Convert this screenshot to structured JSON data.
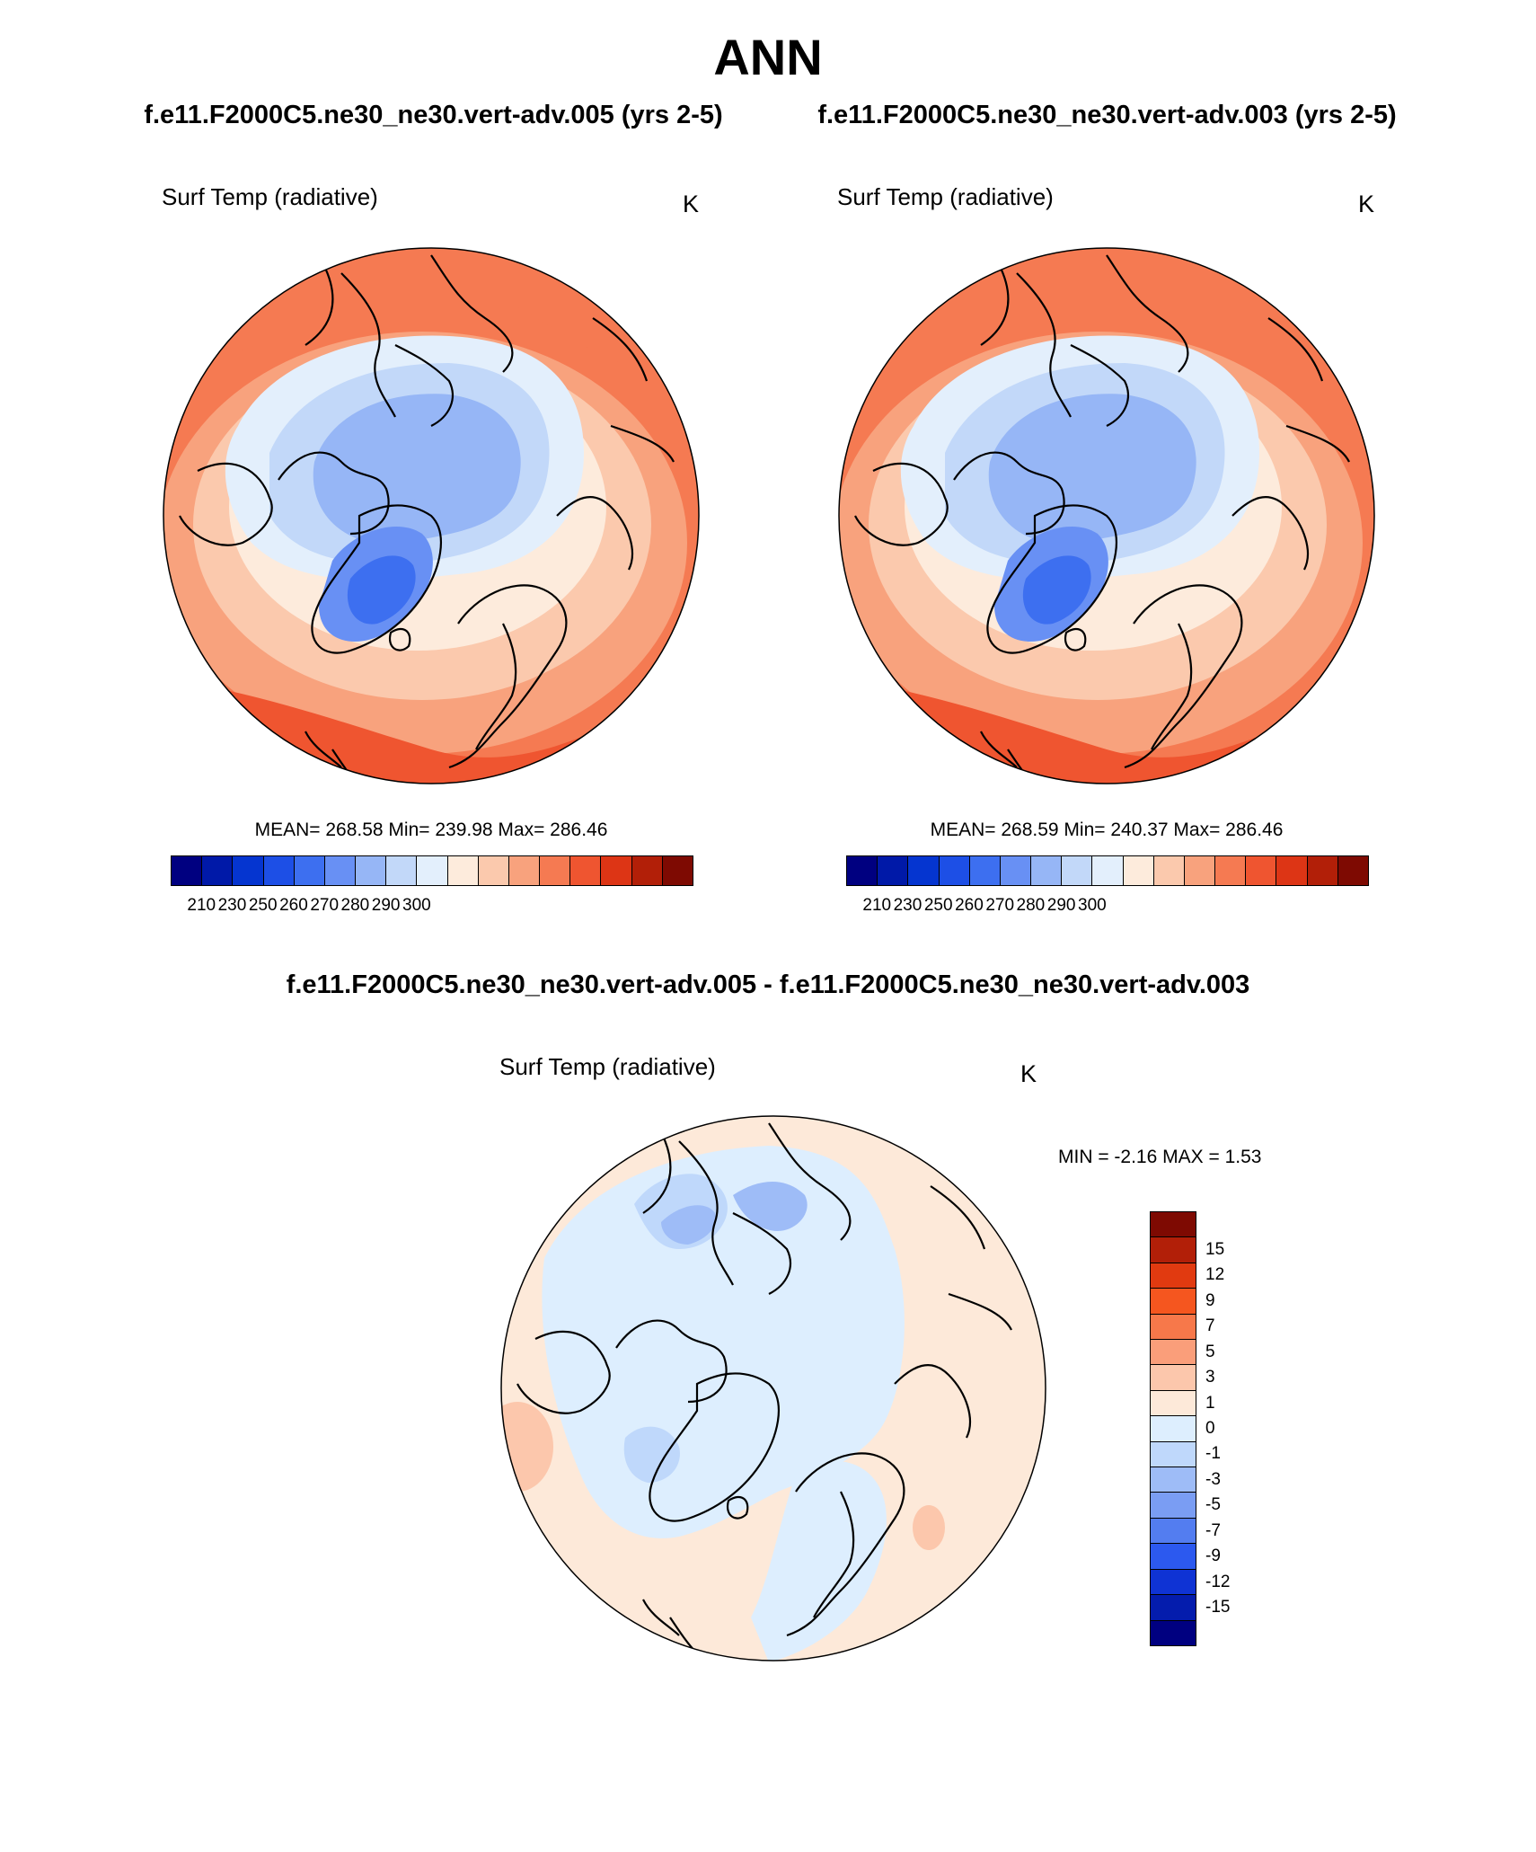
{
  "figure": {
    "title": "ANN",
    "test_case_title": "f.e11.F2000C5.ne30_ne30.vert-adv.005 (yrs 2-5)",
    "control_case_title": "f.e11.F2000C5.ne30_ne30.vert-adv.003 (yrs 2-5)",
    "diff_title": "f.e11.F2000C5.ne30_ne30.vert-adv.005 - f.e11.F2000C5.ne30_ne30.vert-adv.003"
  },
  "panels": {
    "test": {
      "variable": "Surf Temp (radiative)",
      "units": "K",
      "stats": "MEAN= 268.58  Min= 239.98  Max= 286.46"
    },
    "control": {
      "variable": "Surf Temp (radiative)",
      "units": "K",
      "stats": "MEAN= 268.59  Min= 240.37  Max= 286.46"
    },
    "diff": {
      "variable": "Surf Temp (radiative)",
      "units": "K",
      "stats": "MIN =  -2.16 MAX =   1.53"
    }
  },
  "colorbars": {
    "abs": {
      "colors": [
        "#000080",
        "#0019a8",
        "#0535d0",
        "#1d4fe6",
        "#3d6ff0",
        "#6890f4",
        "#96b6f6",
        "#c2d8f9",
        "#e3effc",
        "#fdebdc",
        "#fbc9ad",
        "#f8a27d",
        "#f57a52",
        "#ef5530",
        "#dd3515",
        "#b21f08",
        "#7e0a02"
      ],
      "ticks": [
        "210",
        "230",
        "250",
        "260",
        "270",
        "280",
        "290",
        "300"
      ]
    },
    "diff": {
      "colors": [
        "#7e0a02",
        "#b21f08",
        "#e13a10",
        "#f5561f",
        "#f7784a",
        "#fa9e7a",
        "#fcc7ac",
        "#fde9d9",
        "#ddeefe",
        "#bfd8fb",
        "#9ebcf7",
        "#7a9df3",
        "#537df0",
        "#2c59ef",
        "#0f33d4",
        "#041cad",
        "#000080"
      ],
      "ticks": [
        "15",
        "12",
        "9",
        "7",
        "5",
        "3",
        "1",
        "0",
        "-1",
        "-3",
        "-5",
        "-7",
        "-9",
        "-12",
        "-15"
      ]
    }
  },
  "map_icons": {
    "test_map": "north-polar-stereographic-map",
    "control_map": "north-polar-stereographic-map",
    "diff_map": "north-polar-stereographic-map"
  }
}
